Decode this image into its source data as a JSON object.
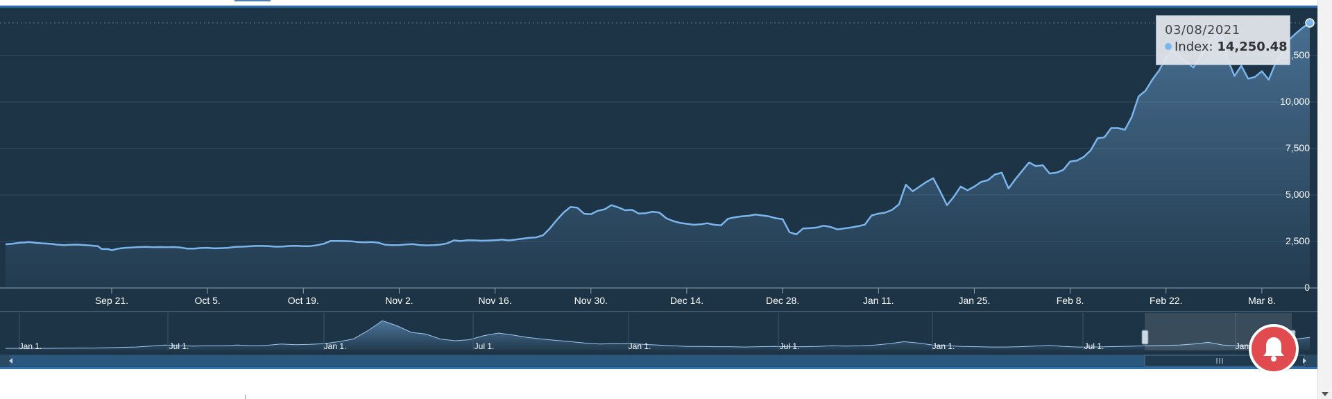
{
  "chart_data": {
    "type": "area",
    "series": [
      {
        "values": [
          [
            0,
            2350
          ],
          [
            2,
            2380
          ],
          [
            4,
            2430
          ],
          [
            6,
            2450
          ],
          [
            7,
            2470
          ],
          [
            9,
            2420
          ],
          [
            11,
            2400
          ],
          [
            13,
            2380
          ],
          [
            15,
            2330
          ],
          [
            17,
            2300
          ],
          [
            19,
            2320
          ],
          [
            21,
            2330
          ],
          [
            23,
            2310
          ],
          [
            25,
            2280
          ],
          [
            27,
            2250
          ],
          [
            28,
            2100
          ],
          [
            30,
            2090
          ],
          [
            31,
            2030
          ],
          [
            33,
            2120
          ],
          [
            35,
            2160
          ],
          [
            37,
            2180
          ],
          [
            39,
            2200
          ],
          [
            41,
            2210
          ],
          [
            43,
            2190
          ],
          [
            45,
            2200
          ],
          [
            47,
            2190
          ],
          [
            49,
            2200
          ],
          [
            51,
            2180
          ],
          [
            53,
            2120
          ],
          [
            55,
            2120
          ],
          [
            57,
            2150
          ],
          [
            59,
            2160
          ],
          [
            61,
            2130
          ],
          [
            63,
            2140
          ],
          [
            65,
            2160
          ],
          [
            67,
            2210
          ],
          [
            69,
            2220
          ],
          [
            71,
            2240
          ],
          [
            73,
            2260
          ],
          [
            75,
            2260
          ],
          [
            77,
            2250
          ],
          [
            79,
            2220
          ],
          [
            81,
            2230
          ],
          [
            83,
            2260
          ],
          [
            85,
            2270
          ],
          [
            87,
            2250
          ],
          [
            89,
            2250
          ],
          [
            91,
            2300
          ],
          [
            93,
            2380
          ],
          [
            95,
            2530
          ],
          [
            97,
            2530
          ],
          [
            99,
            2520
          ],
          [
            101,
            2510
          ],
          [
            103,
            2470
          ],
          [
            105,
            2450
          ],
          [
            107,
            2470
          ],
          [
            109,
            2430
          ],
          [
            111,
            2320
          ],
          [
            113,
            2300
          ],
          [
            115,
            2310
          ],
          [
            117,
            2340
          ],
          [
            119,
            2360
          ],
          [
            121,
            2310
          ],
          [
            123,
            2290
          ],
          [
            125,
            2300
          ],
          [
            127,
            2330
          ],
          [
            129,
            2400
          ],
          [
            131,
            2560
          ],
          [
            133,
            2520
          ],
          [
            135,
            2570
          ],
          [
            137,
            2560
          ],
          [
            139,
            2540
          ],
          [
            141,
            2550
          ],
          [
            143,
            2570
          ],
          [
            145,
            2600
          ],
          [
            147,
            2560
          ],
          [
            149,
            2600
          ],
          [
            151,
            2650
          ],
          [
            153,
            2700
          ],
          [
            155,
            2720
          ],
          [
            157,
            2830
          ],
          [
            159,
            3200
          ],
          [
            161,
            3650
          ],
          [
            163,
            4050
          ],
          [
            165,
            4350
          ],
          [
            167,
            4320
          ],
          [
            169,
            3990
          ],
          [
            171,
            3960
          ],
          [
            173,
            4150
          ],
          [
            175,
            4230
          ],
          [
            177,
            4450
          ],
          [
            179,
            4330
          ],
          [
            181,
            4180
          ],
          [
            183,
            4200
          ],
          [
            185,
            4000
          ],
          [
            187,
            4020
          ],
          [
            189,
            4100
          ],
          [
            191,
            4050
          ],
          [
            193,
            3750
          ],
          [
            195,
            3600
          ],
          [
            197,
            3500
          ],
          [
            199,
            3450
          ],
          [
            201,
            3400
          ],
          [
            203,
            3420
          ],
          [
            205,
            3480
          ],
          [
            207,
            3400
          ],
          [
            209,
            3370
          ],
          [
            211,
            3720
          ],
          [
            213,
            3800
          ],
          [
            215,
            3850
          ],
          [
            217,
            3880
          ],
          [
            219,
            3950
          ],
          [
            221,
            3900
          ],
          [
            223,
            3850
          ],
          [
            225,
            3750
          ],
          [
            227,
            3700
          ],
          [
            229,
            3000
          ],
          [
            231,
            2880
          ],
          [
            233,
            3200
          ],
          [
            235,
            3220
          ],
          [
            237,
            3250
          ],
          [
            239,
            3350
          ],
          [
            241,
            3280
          ],
          [
            243,
            3150
          ],
          [
            245,
            3200
          ],
          [
            247,
            3250
          ],
          [
            249,
            3320
          ],
          [
            251,
            3400
          ],
          [
            253,
            3900
          ],
          [
            255,
            4000
          ],
          [
            257,
            4050
          ],
          [
            259,
            4200
          ],
          [
            261,
            4500
          ],
          [
            263,
            5550
          ],
          [
            265,
            5200
          ],
          [
            267,
            5450
          ],
          [
            269,
            5700
          ],
          [
            271,
            5900
          ],
          [
            273,
            5200
          ],
          [
            275,
            4450
          ],
          [
            277,
            4900
          ],
          [
            279,
            5450
          ],
          [
            281,
            5250
          ],
          [
            283,
            5450
          ],
          [
            285,
            5700
          ],
          [
            287,
            5800
          ],
          [
            289,
            6100
          ],
          [
            291,
            6200
          ],
          [
            293,
            5350
          ],
          [
            295,
            5850
          ],
          [
            297,
            6300
          ],
          [
            299,
            6750
          ],
          [
            301,
            6550
          ],
          [
            303,
            6600
          ],
          [
            305,
            6150
          ],
          [
            307,
            6200
          ],
          [
            309,
            6350
          ],
          [
            311,
            6800
          ],
          [
            313,
            6850
          ],
          [
            315,
            7050
          ],
          [
            317,
            7400
          ],
          [
            319,
            8050
          ],
          [
            321,
            8100
          ],
          [
            323,
            8600
          ],
          [
            325,
            8600
          ],
          [
            327,
            8500
          ],
          [
            329,
            9200
          ],
          [
            331,
            10300
          ],
          [
            333,
            10600
          ],
          [
            335,
            11200
          ],
          [
            337,
            11700
          ],
          [
            339,
            12400
          ],
          [
            341,
            12750
          ],
          [
            343,
            12450
          ],
          [
            345,
            12150
          ],
          [
            347,
            11850
          ],
          [
            349,
            12400
          ],
          [
            351,
            13150
          ],
          [
            353,
            13450
          ],
          [
            355,
            13800
          ],
          [
            357,
            12300
          ],
          [
            359,
            11400
          ],
          [
            361,
            11950
          ],
          [
            363,
            11250
          ],
          [
            365,
            11350
          ],
          [
            367,
            11650
          ],
          [
            369,
            11200
          ],
          [
            371,
            12100
          ],
          [
            373,
            12700
          ],
          [
            375,
            13350
          ],
          [
            377,
            13700
          ],
          [
            379,
            14000
          ],
          [
            381,
            14250.48
          ]
        ]
      }
    ],
    "x_ticks": [
      "Sep 21.",
      "Oct 5.",
      "Oct 19.",
      "Nov 2.",
      "Nov 16.",
      "Nov 30.",
      "Dec 14.",
      "Dec 28.",
      "Jan 11.",
      "Jan 25.",
      "Feb 8.",
      "Feb 22.",
      "Mar 8."
    ],
    "y_ticks": [
      "0",
      "2,500",
      "5,000",
      "7,500",
      "10,000",
      "12,500"
    ],
    "ylim": [
      0,
      14250.48
    ],
    "navigator": {
      "labels": [
        "Jan 1.",
        "Jul 1.",
        "Jan 1.",
        "Jul 1.",
        "Jan 1.",
        "Jul 1.",
        "Jan 1.",
        "Jul 1.",
        "Jan 1."
      ],
      "values": [
        0.02,
        0.02,
        0.02,
        0.02,
        0.025,
        0.03,
        0.03,
        0.04,
        0.05,
        0.06,
        0.09,
        0.12,
        0.1,
        0.09,
        0.1,
        0.1,
        0.12,
        0.1,
        0.11,
        0.15,
        0.13,
        0.14,
        0.16,
        0.22,
        0.3,
        0.55,
        0.85,
        0.7,
        0.5,
        0.45,
        0.3,
        0.25,
        0.28,
        0.4,
        0.48,
        0.42,
        0.35,
        0.3,
        0.26,
        0.22,
        0.18,
        0.15,
        0.16,
        0.17,
        0.14,
        0.12,
        0.1,
        0.08,
        0.08,
        0.07,
        0.07,
        0.06,
        0.07,
        0.08,
        0.07,
        0.07,
        0.08,
        0.1,
        0.09,
        0.1,
        0.12,
        0.16,
        0.22,
        0.18,
        0.12,
        0.1,
        0.08,
        0.07,
        0.06,
        0.06,
        0.07,
        0.09,
        0.11,
        0.08,
        0.06,
        0.06,
        0.07,
        0.08,
        0.09,
        0.1,
        0.11,
        0.12,
        0.15,
        0.2,
        0.12,
        0.1,
        0.12,
        0.15,
        0.2,
        0.3,
        0.35
      ]
    }
  },
  "tooltip": {
    "date": "03/08/2021",
    "series_label": "Index:",
    "value": "14,250.48",
    "dot_color": "#7cb5ec"
  },
  "colors": {
    "background": "#1d3446",
    "line": "#7cb5ec",
    "grid": "#2f4d66",
    "accent": "#2f6fb3",
    "bell": "#e14a4f"
  },
  "icons": {
    "alert": "bell-icon",
    "scroll_left": "arrow-left-icon",
    "scroll_right": "arrow-right-icon",
    "scroll_grip": "grip-icon",
    "page_scroll_down": "arrow-down-icon"
  }
}
